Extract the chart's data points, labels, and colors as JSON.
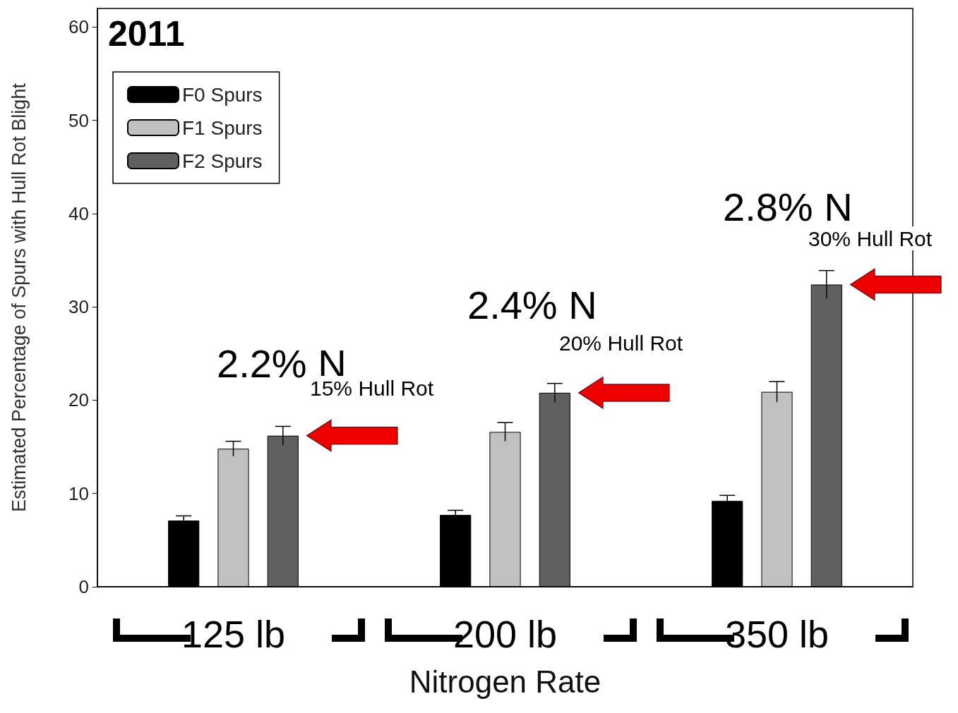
{
  "chart_data": {
    "type": "bar",
    "title": "2011",
    "xlabel": "Nitrogen Rate",
    "ylabel": "Estimated Percentage of Spurs with Hull Rot Blight",
    "categories": [
      "125 lb",
      "200 lb",
      "350 lb"
    ],
    "series": [
      {
        "name": "F0 Spurs",
        "color": "#000000",
        "values": [
          7.1,
          7.7,
          9.2
        ],
        "errors": [
          0.5,
          0.5,
          0.6
        ]
      },
      {
        "name": "F1 Spurs",
        "color": "#c0c0c0",
        "values": [
          14.8,
          16.6,
          20.9
        ],
        "errors": [
          0.8,
          1.0,
          1.1
        ]
      },
      {
        "name": "F2 Spurs",
        "color": "#606060",
        "values": [
          16.2,
          20.8,
          32.4
        ],
        "errors": [
          1.0,
          1.0,
          1.5
        ]
      }
    ],
    "ylim": [
      0,
      62
    ],
    "yticks": [
      0,
      10,
      20,
      30,
      40,
      50,
      60
    ],
    "grid": false,
    "legend": "top left",
    "annotations": [
      "2.2% N",
      "15% Hull Rot",
      "2.4% N",
      "20% Hull Rot",
      "2.8% N",
      "30% Hull Rot"
    ]
  }
}
